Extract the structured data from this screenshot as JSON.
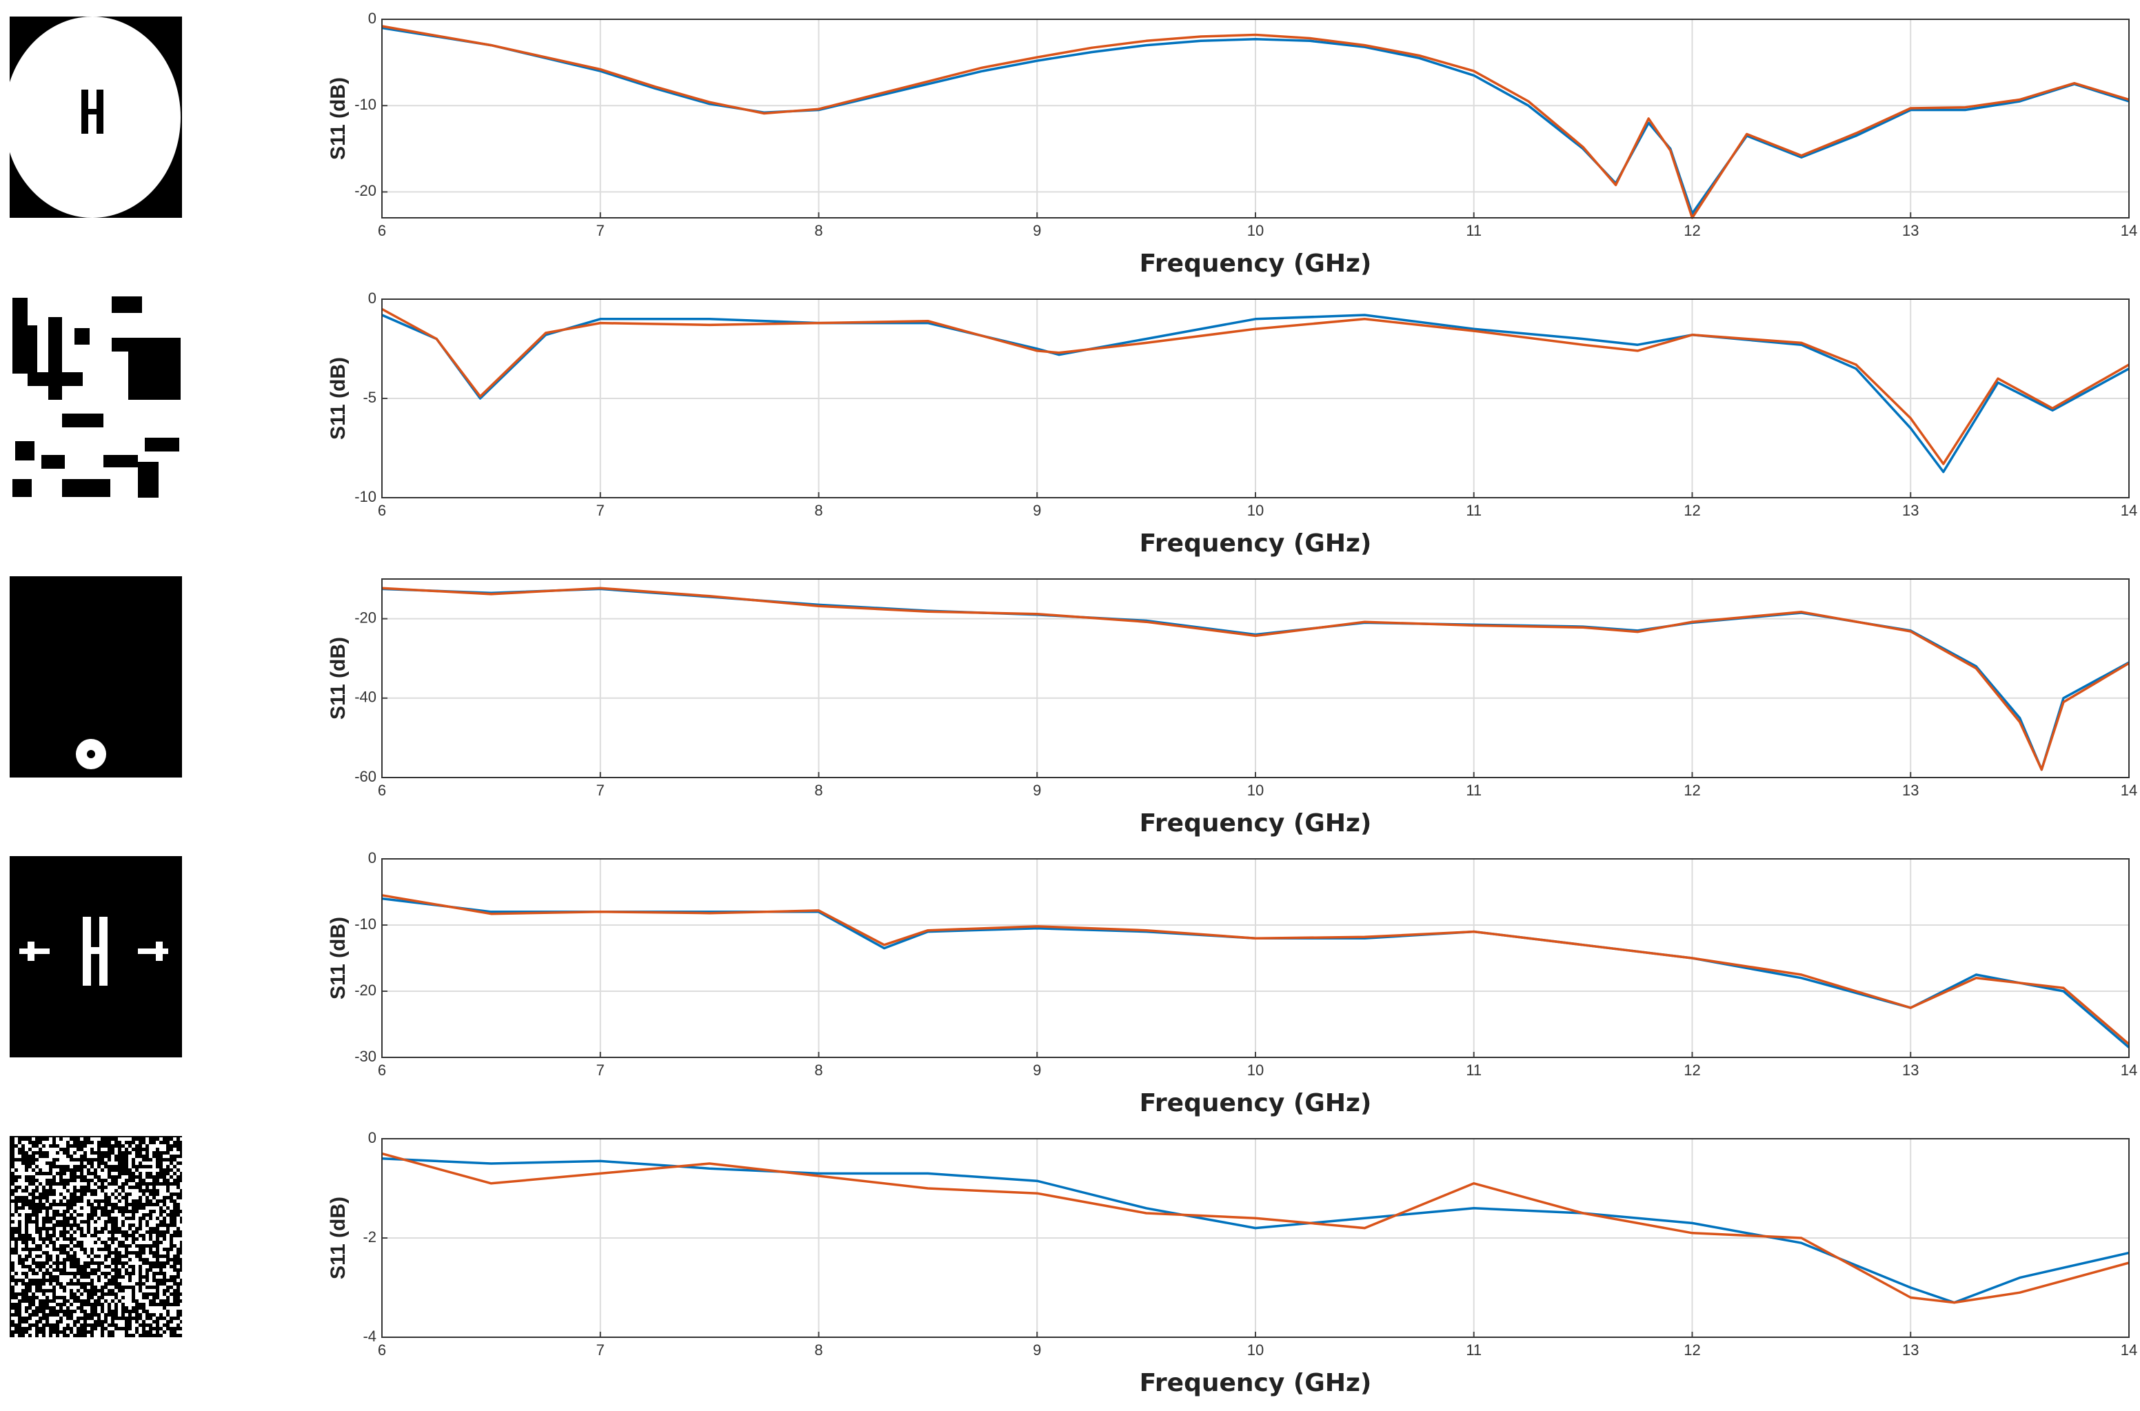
{
  "chart_data": [
    {
      "type": "line",
      "xlabel": "Frequency (GHz)",
      "ylabel": "S11 (dB)",
      "grid": true,
      "xlim": [
        6,
        14
      ],
      "xticks": [
        6,
        7,
        8,
        9,
        10,
        11,
        12,
        13,
        14
      ],
      "ylim": [
        -23,
        0
      ],
      "yticks": [
        0,
        -10,
        -20
      ],
      "x": [
        6,
        6.25,
        6.5,
        6.75,
        7,
        7.25,
        7.5,
        7.75,
        8,
        8.25,
        8.5,
        8.75,
        9,
        9.25,
        9.5,
        9.75,
        10,
        10.25,
        10.5,
        10.75,
        11,
        11.25,
        11.5,
        11.65,
        11.8,
        11.9,
        12,
        12.25,
        12.5,
        12.75,
        13,
        13.25,
        13.5,
        13.75,
        14
      ],
      "series": [
        {
          "color": "#0072bd",
          "values": [
            -1,
            -2,
            -3,
            -4.5,
            -6,
            -8,
            -9.8,
            -10.8,
            -10.5,
            -9,
            -7.5,
            -6,
            -4.8,
            -3.8,
            -3,
            -2.5,
            -2.3,
            -2.5,
            -3.2,
            -4.5,
            -6.5,
            -10,
            -15,
            -19,
            -12,
            -15,
            -22.5,
            -13.5,
            -16,
            -13.5,
            -10.5,
            -10.5,
            -9.5,
            -7.5,
            -9.5
          ]
        },
        {
          "color": "#d95319",
          "values": [
            -0.8,
            -1.9,
            -3,
            -4.4,
            -5.8,
            -7.8,
            -9.6,
            -10.9,
            -10.4,
            -8.8,
            -7.2,
            -5.6,
            -4.4,
            -3.3,
            -2.5,
            -2,
            -1.8,
            -2.2,
            -3,
            -4.2,
            -6,
            -9.5,
            -14.8,
            -19.2,
            -11.5,
            -15.2,
            -23,
            -13.3,
            -15.8,
            -13.2,
            -10.3,
            -10.2,
            -9.3,
            -7.4,
            -9.3
          ]
        }
      ]
    },
    {
      "type": "line",
      "xlabel": "Frequency (GHz)",
      "ylabel": "S11 (dB)",
      "grid": true,
      "xlim": [
        6,
        14
      ],
      "xticks": [
        6,
        7,
        8,
        9,
        10,
        11,
        12,
        13,
        14
      ],
      "ylim": [
        -10,
        0
      ],
      "yticks": [
        0,
        -5,
        -10
      ],
      "x": [
        6,
        6.25,
        6.45,
        6.75,
        7,
        7.5,
        8,
        8.5,
        9,
        9.1,
        9.5,
        10,
        10.5,
        11,
        11.5,
        11.75,
        12,
        12.5,
        12.75,
        13,
        13.15,
        13.4,
        13.65,
        14
      ],
      "series": [
        {
          "color": "#0072bd",
          "values": [
            -0.8,
            -2,
            -5,
            -1.8,
            -1,
            -1,
            -1.2,
            -1.2,
            -2.5,
            -2.8,
            -2,
            -1,
            -0.8,
            -1.5,
            -2,
            -2.3,
            -1.8,
            -2.3,
            -3.5,
            -6.5,
            -8.7,
            -4.2,
            -5.6,
            -3.5
          ]
        },
        {
          "color": "#d95319",
          "values": [
            -0.5,
            -2,
            -4.9,
            -1.7,
            -1.2,
            -1.3,
            -1.2,
            -1.1,
            -2.6,
            -2.7,
            -2.2,
            -1.5,
            -1,
            -1.6,
            -2.3,
            -2.6,
            -1.8,
            -2.2,
            -3.3,
            -6,
            -8.3,
            -4,
            -5.5,
            -3.3
          ]
        }
      ]
    },
    {
      "type": "line",
      "xlabel": "Frequency (GHz)",
      "ylabel": "S11 (dB)",
      "grid": true,
      "xlim": [
        6,
        14
      ],
      "xticks": [
        6,
        7,
        8,
        9,
        10,
        11,
        12,
        13,
        14
      ],
      "ylim": [
        -60,
        -10
      ],
      "yticks": [
        -20,
        -40,
        -60
      ],
      "x": [
        6,
        6.5,
        7,
        7.5,
        8,
        8.5,
        9,
        9.5,
        10,
        10.5,
        11,
        11.5,
        11.75,
        12,
        12.5,
        13,
        13.3,
        13.5,
        13.6,
        13.7,
        14
      ],
      "series": [
        {
          "color": "#0072bd",
          "values": [
            -12.5,
            -13.5,
            -12.5,
            -14.5,
            -16.5,
            -18,
            -19,
            -20.5,
            -24,
            -21,
            -21.5,
            -22,
            -23,
            -21,
            -18.5,
            -23,
            -32,
            -45,
            -58,
            -40,
            -31
          ]
        },
        {
          "color": "#d95319",
          "values": [
            -12.3,
            -13.8,
            -12.3,
            -14.3,
            -16.8,
            -18.2,
            -18.8,
            -20.8,
            -24.3,
            -20.8,
            -21.7,
            -22.2,
            -23.3,
            -20.8,
            -18.3,
            -23.2,
            -32.5,
            -46,
            -58,
            -41,
            -31.2
          ]
        }
      ]
    },
    {
      "type": "line",
      "xlabel": "Frequency (GHz)",
      "ylabel": "S11 (dB)",
      "grid": true,
      "xlim": [
        6,
        14
      ],
      "xticks": [
        6,
        7,
        8,
        9,
        10,
        11,
        12,
        13,
        14
      ],
      "ylim": [
        -30,
        0
      ],
      "yticks": [
        0,
        -10,
        -20,
        -30
      ],
      "x": [
        6,
        6.5,
        7,
        7.5,
        8,
        8.3,
        8.5,
        9,
        9.5,
        10,
        10.5,
        11,
        11.5,
        12,
        12.5,
        13,
        13.3,
        13.7,
        14
      ],
      "series": [
        {
          "color": "#0072bd",
          "values": [
            -6,
            -8,
            -8,
            -8,
            -8,
            -13.5,
            -11,
            -10.5,
            -11,
            -12,
            -12,
            -11,
            -13,
            -15,
            -18,
            -22.5,
            -17.5,
            -20,
            -28.5
          ]
        },
        {
          "color": "#d95319",
          "values": [
            -5.5,
            -8.3,
            -8,
            -8.2,
            -7.8,
            -13,
            -10.8,
            -10.2,
            -10.8,
            -12,
            -11.8,
            -11,
            -13,
            -15,
            -17.5,
            -22.5,
            -18,
            -19.5,
            -28
          ]
        }
      ]
    },
    {
      "type": "line",
      "xlabel": "Frequency (GHz)",
      "ylabel": "S11 (dB)",
      "grid": true,
      "xlim": [
        6,
        14
      ],
      "xticks": [
        6,
        7,
        8,
        9,
        10,
        11,
        12,
        13,
        14
      ],
      "ylim": [
        -4,
        0
      ],
      "yticks": [
        0,
        -2,
        -4
      ],
      "x": [
        6,
        6.5,
        7,
        7.5,
        8,
        8.5,
        9,
        9.5,
        10,
        10.5,
        11,
        11.5,
        12,
        12.5,
        13,
        13.2,
        13.5,
        14
      ],
      "series": [
        {
          "color": "#0072bd",
          "values": [
            -0.4,
            -0.5,
            -0.45,
            -0.6,
            -0.7,
            -0.7,
            -0.85,
            -1.4,
            -1.8,
            -1.6,
            -1.4,
            -1.5,
            -1.7,
            -2.1,
            -3,
            -3.3,
            -2.8,
            -2.3
          ]
        },
        {
          "color": "#d95319",
          "values": [
            -0.3,
            -0.9,
            -0.7,
            -0.5,
            -0.75,
            -1,
            -1.1,
            -1.5,
            -1.6,
            -1.8,
            -0.9,
            -1.5,
            -1.9,
            -2,
            -3.2,
            -3.3,
            -3.1,
            -2.5
          ]
        }
      ]
    }
  ]
}
